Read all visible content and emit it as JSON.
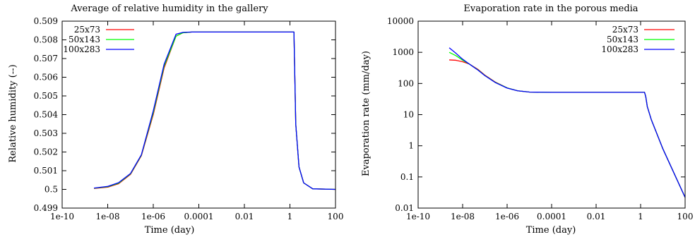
{
  "chart_data": [
    {
      "type": "line",
      "title": "Average of relative humidity in the gallery",
      "xlabel": "Time (day)",
      "ylabel": "Relative humidity (--)",
      "xscale": "log",
      "yscale": "linear",
      "xlim": [
        1e-10,
        100
      ],
      "ylim": [
        0.499,
        0.509
      ],
      "xticks": [
        1e-10,
        1e-08,
        1e-06,
        0.0001,
        0.01,
        1,
        100
      ],
      "xtick_labels": [
        "1e-10",
        "1e-08",
        "1e-06",
        "0.0001",
        "0.01",
        "1",
        "100"
      ],
      "yticks": [
        0.499,
        0.5,
        0.501,
        0.502,
        0.503,
        0.504,
        0.505,
        0.506,
        0.507,
        0.508,
        0.509
      ],
      "ytick_labels": [
        "0.499",
        "0.5",
        "0.501",
        "0.502",
        "0.503",
        "0.504",
        "0.505",
        "0.506",
        "0.507",
        "0.508",
        "0.509"
      ],
      "grid": false,
      "legend": "top-left",
      "series": [
        {
          "name": "25x73",
          "color": "#ff0000",
          "x": [
            2.5e-09,
            1e-08,
            3e-08,
            1e-07,
            3e-07,
            1e-06,
            3e-06,
            1e-05,
            2e-05,
            5e-05,
            0.0001,
            1,
            1.5,
            1.8,
            2.5,
            4,
            10,
            100
          ],
          "y": [
            0.50005,
            0.50012,
            0.5003,
            0.5008,
            0.5018,
            0.504,
            0.5065,
            0.5082,
            0.50838,
            0.50842,
            0.50842,
            0.50842,
            0.50842,
            0.5035,
            0.5012,
            0.50035,
            0.50003,
            0.5
          ]
        },
        {
          "name": "50x143",
          "color": "#00ff00",
          "x": [
            2.5e-09,
            1e-08,
            3e-08,
            1e-07,
            3e-07,
            1e-06,
            3e-06,
            1e-05,
            2e-05,
            5e-05,
            0.0001,
            1,
            1.5,
            1.8,
            2.5,
            4,
            10,
            100
          ],
          "y": [
            0.50006,
            0.50014,
            0.50033,
            0.50083,
            0.50183,
            0.5041,
            0.5066,
            0.5082,
            0.50838,
            0.50842,
            0.50842,
            0.50842,
            0.50842,
            0.5035,
            0.5012,
            0.50035,
            0.50003,
            0.5
          ]
        },
        {
          "name": "100x283",
          "color": "#0000ff",
          "x": [
            2.5e-09,
            1e-08,
            3e-08,
            1e-07,
            3e-07,
            1e-06,
            3e-06,
            1e-05,
            2e-05,
            5e-05,
            0.0001,
            1,
            1.5,
            1.8,
            2.5,
            4,
            10,
            100
          ],
          "y": [
            0.50007,
            0.50016,
            0.50036,
            0.50085,
            0.50185,
            0.5042,
            0.5067,
            0.5083,
            0.5084,
            0.50842,
            0.50842,
            0.50842,
            0.50842,
            0.5035,
            0.5012,
            0.50035,
            0.50003,
            0.5
          ]
        }
      ]
    },
    {
      "type": "line",
      "title": "Evaporation rate in the porous media",
      "xlabel": "Time (day)",
      "ylabel": "Evaporation rate (mm/day)",
      "xscale": "log",
      "yscale": "log",
      "xlim": [
        1e-10,
        100
      ],
      "ylim": [
        0.01,
        10000
      ],
      "xticks": [
        1e-10,
        1e-08,
        1e-06,
        0.0001,
        0.01,
        1,
        100
      ],
      "xtick_labels": [
        "1e-10",
        "1e-08",
        "1e-06",
        "0.0001",
        "0.01",
        "1",
        "100"
      ],
      "yticks": [
        0.01,
        0.1,
        1,
        10,
        100,
        1000,
        10000
      ],
      "ytick_labels": [
        "0.01",
        "0.1",
        "1",
        "10",
        "100",
        "1000",
        "10000"
      ],
      "grid": false,
      "legend": "top-right",
      "series": [
        {
          "name": "25x73",
          "color": "#ff0000",
          "x": [
            2.5e-09,
            5e-09,
            1e-08,
            2e-08,
            5e-08,
            1e-07,
            3e-07,
            1e-06,
            3e-06,
            1e-05,
            0.0001,
            1.5,
            1.7,
            2,
            3,
            10,
            100
          ],
          "y": [
            570,
            555,
            500,
            420,
            280,
            185,
            110,
            72,
            58,
            53,
            52,
            52,
            38,
            18,
            7,
            0.8,
            0.022
          ]
        },
        {
          "name": "50x143",
          "color": "#00ff00",
          "x": [
            2.5e-09,
            5e-09,
            1e-08,
            2e-08,
            5e-08,
            1e-07,
            3e-07,
            1e-06,
            3e-06,
            1e-05,
            0.0001,
            1.5,
            1.7,
            2,
            3,
            10,
            100
          ],
          "y": [
            1000,
            780,
            560,
            420,
            270,
            180,
            108,
            72,
            58,
            53,
            52,
            52,
            38,
            18,
            7,
            0.8,
            0.022
          ]
        },
        {
          "name": "100x283",
          "color": "#0000ff",
          "x": [
            2.5e-09,
            5e-09,
            1e-08,
            2e-08,
            5e-08,
            1e-07,
            3e-07,
            1e-06,
            3e-06,
            1e-05,
            0.0001,
            1.5,
            1.7,
            2,
            3,
            10,
            100
          ],
          "y": [
            1400,
            930,
            600,
            420,
            265,
            178,
            106,
            71,
            58,
            53,
            52,
            52,
            38,
            18,
            7,
            0.8,
            0.022
          ]
        }
      ]
    }
  ]
}
